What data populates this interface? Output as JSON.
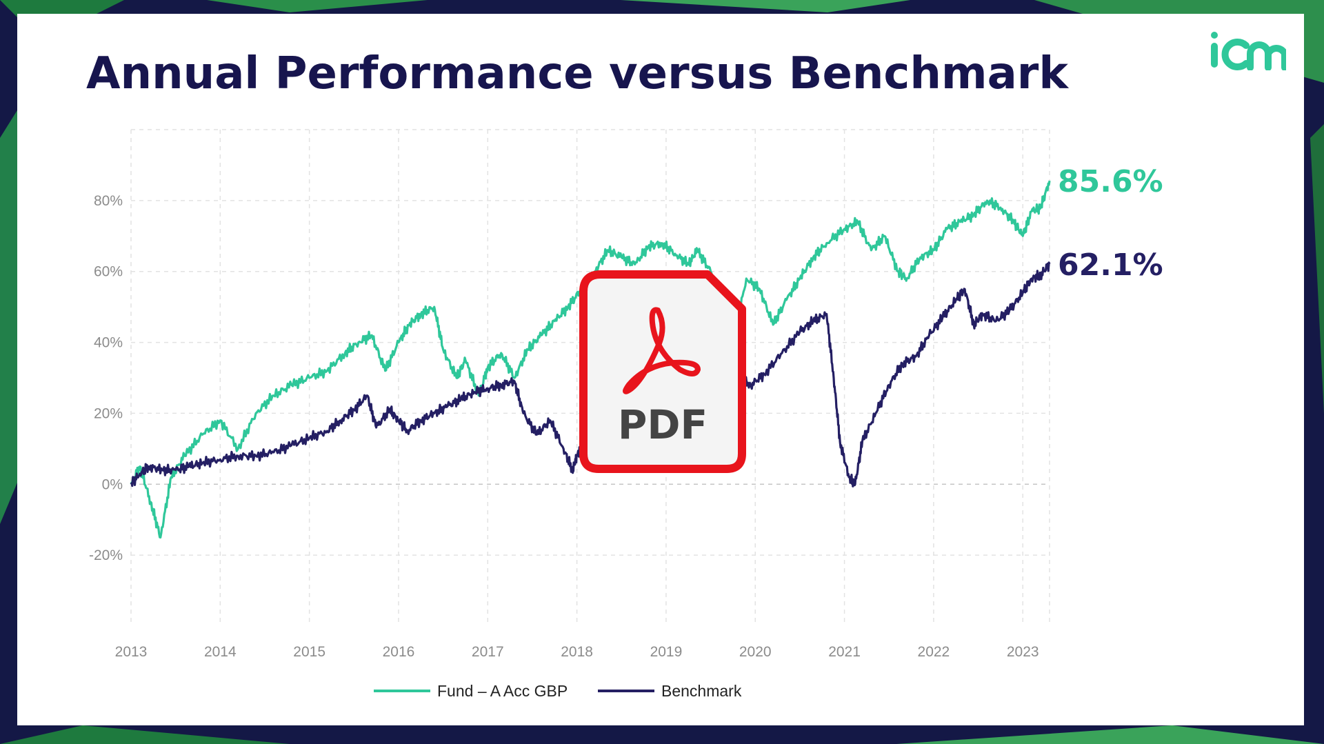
{
  "slide": {
    "title": "Annual Performance versus Benchmark",
    "logo_text": "icm"
  },
  "colors": {
    "fund": "#2fc79a",
    "benchmark": "#241f63",
    "title": "#17154e",
    "pdf_red": "#e8141c"
  },
  "pdf_badge": {
    "icon": "pdf-file-icon",
    "label": "PDF"
  },
  "chart_data": {
    "type": "line",
    "title": "Annual Performance versus Benchmark",
    "xlabel": "",
    "ylabel": "",
    "x_ticks": [
      "2013",
      "2014",
      "2015",
      "2016",
      "2017",
      "2018",
      "2019",
      "2020",
      "2021",
      "2022",
      "2023"
    ],
    "y_ticks": [
      "80%",
      "60%",
      "40%",
      "20%",
      "0%",
      "-20%"
    ],
    "y_tick_values": [
      80,
      60,
      40,
      20,
      0,
      -20
    ],
    "xlim": [
      2013,
      2023.3
    ],
    "ylim": [
      -40,
      100
    ],
    "grid": true,
    "legend_position": "bottom",
    "series": [
      {
        "name": "Fund – A Acc GBP",
        "color": "#2fc79a",
        "end_label": "85.6%",
        "x": [
          2013.0,
          2013.1,
          2013.22,
          2013.33,
          2013.45,
          2013.6,
          2013.8,
          2014.0,
          2014.2,
          2014.4,
          2014.6,
          2014.8,
          2015.0,
          2015.2,
          2015.4,
          2015.55,
          2015.7,
          2015.85,
          2016.0,
          2016.12,
          2016.25,
          2016.4,
          2016.5,
          2016.65,
          2016.75,
          2016.9,
          2017.0,
          2017.15,
          2017.3,
          2017.45,
          2017.6,
          2017.75,
          2017.9,
          2018.05,
          2018.2,
          2018.35,
          2018.5,
          2018.65,
          2018.8,
          2018.95,
          2019.1,
          2019.25,
          2019.35,
          2019.5,
          2019.6,
          2019.75,
          2019.9,
          2020.05,
          2020.2,
          2020.35,
          2020.5,
          2020.65,
          2020.8,
          2021.0,
          2021.15,
          2021.3,
          2021.45,
          2021.6,
          2021.7,
          2021.85,
          2022.0,
          2022.15,
          2022.3,
          2022.45,
          2022.6,
          2022.75,
          2022.9,
          2023.0,
          2023.1,
          2023.2,
          2023.3
        ],
        "values": [
          0,
          5,
          -5,
          -15,
          2,
          8,
          14,
          18,
          10,
          20,
          25,
          28,
          30,
          32,
          37,
          40,
          42,
          32,
          40,
          45,
          48,
          50,
          38,
          30,
          35,
          25,
          33,
          37,
          30,
          38,
          42,
          46,
          50,
          55,
          60,
          66,
          64,
          62,
          67,
          68,
          65,
          62,
          66,
          60,
          52,
          40,
          58,
          55,
          45,
          52,
          58,
          64,
          68,
          72,
          74,
          66,
          70,
          60,
          58,
          64,
          66,
          72,
          74,
          76,
          80,
          78,
          74,
          70,
          77,
          78,
          85.6
        ]
      },
      {
        "name": "Benchmark",
        "color": "#241f63",
        "end_label": "62.1%",
        "x": [
          2013.0,
          2013.1,
          2013.2,
          2013.35,
          2013.5,
          2013.65,
          2013.8,
          2014.0,
          2014.2,
          2014.4,
          2014.6,
          2014.8,
          2015.0,
          2015.2,
          2015.35,
          2015.5,
          2015.65,
          2015.75,
          2015.9,
          2016.0,
          2016.1,
          2016.25,
          2016.4,
          2016.55,
          2016.7,
          2016.85,
          2017.0,
          2017.15,
          2017.3,
          2017.4,
          2017.55,
          2017.7,
          2017.85,
          2017.95,
          2018.0,
          2018.1,
          2018.25,
          2018.4,
          2018.6,
          2018.8,
          2019.0,
          2019.2,
          2019.4,
          2019.6,
          2019.8,
          2019.95,
          2020.1,
          2020.3,
          2020.5,
          2020.65,
          2020.8,
          2020.88,
          2020.95,
          2021.05,
          2021.12,
          2021.2,
          2021.35,
          2021.5,
          2021.65,
          2021.8,
          2021.95,
          2022.1,
          2022.25,
          2022.35,
          2022.45,
          2022.55,
          2022.7,
          2022.85,
          2023.0,
          2023.1,
          2023.2,
          2023.3
        ],
        "values": [
          0,
          3,
          5,
          4,
          4,
          5,
          6,
          7,
          8,
          8,
          9,
          11,
          13,
          15,
          18,
          21,
          25,
          16,
          21,
          18,
          15,
          18,
          20,
          22,
          24,
          26,
          27,
          28,
          29,
          20,
          14,
          18,
          10,
          4,
          8,
          14,
          20,
          27,
          31,
          33,
          35,
          36,
          38,
          34,
          30,
          28,
          31,
          37,
          43,
          46,
          48,
          30,
          12,
          2,
          0,
          12,
          20,
          28,
          34,
          36,
          42,
          47,
          52,
          55,
          45,
          48,
          46,
          49,
          54,
          58,
          59,
          62.1
        ]
      }
    ]
  }
}
